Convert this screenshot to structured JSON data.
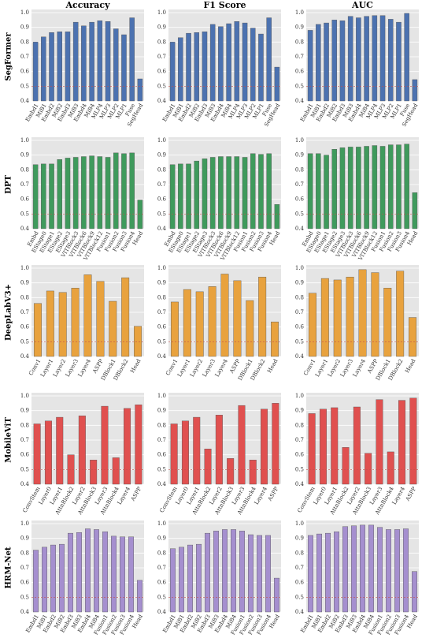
{
  "chart_data": [
    {
      "type": "bar",
      "title": "Accuracy",
      "ylabel": "SegFormer",
      "categories": [
        "Embd1",
        "MiB1",
        "Embd2",
        "MiB2",
        "Embd3",
        "MiB3",
        "Embd4",
        "MiB4",
        "MLP4",
        "MLP3",
        "MLP2",
        "MLP1",
        "Fuse",
        "SegHead"
      ],
      "values": [
        0.8,
        0.835,
        0.865,
        0.87,
        0.87,
        0.935,
        0.91,
        0.935,
        0.945,
        0.94,
        0.89,
        0.85,
        0.965,
        0.55
      ],
      "color": "#4c72b0",
      "ylim": [
        0.4,
        1
      ],
      "yticks": [
        0.4,
        0.5,
        0.6,
        0.7,
        0.8,
        0.9,
        {
          "value": 1,
          "label": "1.0"
        }
      ],
      "reference_line": 0.5,
      "grid": true
    },
    {
      "type": "bar",
      "title": "F1 Score",
      "categories": [
        "Embd1",
        "MiB1",
        "Embd2",
        "MiB2",
        "Embd3",
        "MiB3",
        "Embd4",
        "MiB4",
        "MLP4",
        "MLP3",
        "MLP2",
        "MLP1",
        "Fuse",
        "SegHead"
      ],
      "values": [
        0.8,
        0.83,
        0.86,
        0.865,
        0.87,
        0.92,
        0.905,
        0.925,
        0.94,
        0.93,
        0.895,
        0.855,
        0.965,
        0.63
      ],
      "color": "#4c72b0",
      "ylim": [
        0.4,
        1
      ],
      "yticks": [
        0.4,
        0.5,
        0.6,
        0.7,
        0.8,
        0.9,
        {
          "value": 1,
          "label": "1.0"
        }
      ],
      "reference_line": 0.5,
      "grid": true
    },
    {
      "type": "bar",
      "title": "AUC",
      "categories": [
        "Embd1",
        "MiB1",
        "Embd2",
        "MiB2",
        "Embd3",
        "MiB3",
        "Embd4",
        "MiB4",
        "MLP4",
        "MLP3",
        "MLP2",
        "MLP1",
        "Fuse",
        "SegHead"
      ],
      "values": [
        0.88,
        0.92,
        0.93,
        0.95,
        0.945,
        0.975,
        0.965,
        0.975,
        0.98,
        0.98,
        0.955,
        0.935,
        0.995,
        0.545
      ],
      "color": "#4c72b0",
      "ylim": [
        0.4,
        1
      ],
      "yticks": [
        0.4,
        0.5,
        0.6,
        0.7,
        0.8,
        0.9,
        {
          "value": 1,
          "label": "1.0"
        }
      ],
      "reference_line": 0.5,
      "grid": true
    },
    {
      "type": "bar",
      "ylabel": "DPT",
      "categories": [
        "Embd",
        "EStage0",
        "EStage1",
        "EStage2",
        "EStage3",
        "VITBlock3",
        "VITBlock6",
        "VITBlock9",
        "VITBlock12",
        "Fusion1",
        "Fusion2",
        "Fusion3",
        "Fusion4",
        "Head"
      ],
      "values": [
        0.835,
        0.84,
        0.84,
        0.87,
        0.88,
        0.885,
        0.89,
        0.895,
        0.89,
        0.885,
        0.915,
        0.91,
        0.915,
        0.595
      ],
      "color": "#3f9a5c",
      "ylim": [
        0.4,
        1
      ],
      "yticks": [
        0.4,
        0.5,
        0.6,
        0.7,
        0.8,
        0.9,
        {
          "value": 1,
          "label": "1.0"
        }
      ],
      "reference_line": 0.5,
      "grid": true
    },
    {
      "type": "bar",
      "categories": [
        "Embd",
        "EStage0",
        "EStage1",
        "EStage2",
        "EStage3",
        "VITBlock3",
        "VITBlock6",
        "VITBlock9",
        "VITBlock12",
        "Fusion1",
        "Fusion2",
        "Fusion3",
        "Fusion4",
        "Head"
      ],
      "values": [
        0.835,
        0.84,
        0.84,
        0.86,
        0.875,
        0.885,
        0.89,
        0.89,
        0.89,
        0.885,
        0.91,
        0.905,
        0.91,
        0.565
      ],
      "color": "#3f9a5c",
      "ylim": [
        0.4,
        1
      ],
      "yticks": [
        0.4,
        0.5,
        0.6,
        0.7,
        0.8,
        0.9,
        {
          "value": 1,
          "label": "1.0"
        }
      ],
      "reference_line": 0.5,
      "grid": true
    },
    {
      "type": "bar",
      "categories": [
        "Embd",
        "EStage0",
        "EStage1",
        "EStage2",
        "EStage3",
        "VITBlock3",
        "VITBlock6",
        "VITBlock9",
        "VITBlock12",
        "Fusion1",
        "Fusion2",
        "Fusion3",
        "Fusion4",
        "Head"
      ],
      "values": [
        0.91,
        0.91,
        0.9,
        0.94,
        0.95,
        0.955,
        0.955,
        0.96,
        0.965,
        0.96,
        0.97,
        0.97,
        0.975,
        0.645
      ],
      "color": "#3f9a5c",
      "ylim": [
        0.4,
        1
      ],
      "yticks": [
        0.4,
        0.5,
        0.6,
        0.7,
        0.8,
        0.9,
        {
          "value": 1,
          "label": "1.0"
        }
      ],
      "reference_line": 0.5,
      "grid": true
    },
    {
      "type": "bar",
      "ylabel": "DeepLabV3+",
      "categories": [
        "Conv1",
        "Layer1",
        "Layer2",
        "Layer3",
        "Layer4",
        "ASPP",
        "DBlock1",
        "DBlock2",
        "Head"
      ],
      "values": [
        0.76,
        0.845,
        0.835,
        0.865,
        0.955,
        0.91,
        0.775,
        0.935,
        0.605
      ],
      "color": "#e8a23e",
      "ylim": [
        0.4,
        1
      ],
      "yticks": [
        0.4,
        0.5,
        0.6,
        0.7,
        0.8,
        0.9,
        {
          "value": 1,
          "label": "1.0"
        }
      ],
      "reference_line": 0.5,
      "grid": true
    },
    {
      "type": "bar",
      "categories": [
        "Conv1",
        "Layer1",
        "Layer2",
        "Layer3",
        "Layer4",
        "ASPP",
        "DBlock1",
        "DBlock2",
        "Head"
      ],
      "values": [
        0.77,
        0.855,
        0.84,
        0.875,
        0.96,
        0.915,
        0.78,
        0.94,
        0.635
      ],
      "color": "#e8a23e",
      "ylim": [
        0.4,
        1
      ],
      "yticks": [
        0.4,
        0.5,
        0.6,
        0.7,
        0.8,
        0.9,
        {
          "value": 1,
          "label": "1.0"
        }
      ],
      "reference_line": 0.5,
      "grid": true
    },
    {
      "type": "bar",
      "categories": [
        "Conv1",
        "Layer1",
        "Layer2",
        "Layer3",
        "Layer4",
        "ASPP",
        "DBlock1",
        "DBlock2",
        "Head"
      ],
      "values": [
        0.83,
        0.93,
        0.92,
        0.94,
        0.99,
        0.97,
        0.865,
        0.98,
        0.665
      ],
      "color": "#e8a23e",
      "ylim": [
        0.4,
        1
      ],
      "yticks": [
        0.4,
        0.5,
        0.6,
        0.7,
        0.8,
        0.9,
        {
          "value": 1,
          "label": "1.0"
        }
      ],
      "reference_line": 0.5,
      "grid": true
    },
    {
      "type": "bar",
      "ylabel": "MobileViT",
      "categories": [
        "ConvStem",
        "Layer0",
        "Layer1",
        "AttnBlock2",
        "Layer2",
        "AttnBlock3",
        "Layer3",
        "AttnBlock4",
        "Layer4",
        "ASPP"
      ],
      "values": [
        0.81,
        0.83,
        0.855,
        0.6,
        0.865,
        0.565,
        0.93,
        0.58,
        0.915,
        0.94
      ],
      "color": "#e0504f",
      "ylim": [
        0.4,
        1
      ],
      "yticks": [
        0.4,
        0.5,
        0.6,
        0.7,
        0.8,
        0.9,
        {
          "value": 1,
          "label": "1.0"
        }
      ],
      "reference_line": 0.5,
      "grid": true
    },
    {
      "type": "bar",
      "categories": [
        "ConvStem",
        "Layer0",
        "Layer1",
        "AttnBlock2",
        "Layer2",
        "AttnBlock3",
        "Layer3",
        "AttnBlock4",
        "Layer4",
        "ASPP"
      ],
      "values": [
        0.81,
        0.83,
        0.855,
        0.64,
        0.87,
        0.575,
        0.935,
        0.565,
        0.91,
        0.95
      ],
      "color": "#e0504f",
      "ylim": [
        0.4,
        1
      ],
      "yticks": [
        0.4,
        0.5,
        0.6,
        0.7,
        0.8,
        0.9,
        {
          "value": 1,
          "label": "1.0"
        }
      ],
      "reference_line": 0.5,
      "grid": true
    },
    {
      "type": "bar",
      "categories": [
        "ConvStem",
        "Layer0",
        "Layer1",
        "AttnBlock2",
        "Layer2",
        "AttnBlock3",
        "Layer3",
        "AttnBlock4",
        "Layer4",
        "ASPP"
      ],
      "values": [
        0.88,
        0.91,
        0.92,
        0.65,
        0.925,
        0.61,
        0.975,
        0.62,
        0.97,
        0.985
      ],
      "color": "#e0504f",
      "ylim": [
        0.4,
        1
      ],
      "yticks": [
        0.4,
        0.5,
        0.6,
        0.7,
        0.8,
        0.9,
        {
          "value": 1,
          "label": "1.0"
        }
      ],
      "reference_line": 0.5,
      "grid": true
    },
    {
      "type": "bar",
      "ylabel": "HRM-Net",
      "categories": [
        "Embd1",
        "MiB1",
        "Embd2",
        "MiB2",
        "Embd3",
        "MiB3",
        "Embd4",
        "MiB4",
        "Fusion1",
        "Fusion2",
        "Fusion3",
        "Fusion4",
        "Head"
      ],
      "values": [
        0.82,
        0.84,
        0.855,
        0.86,
        0.935,
        0.94,
        0.965,
        0.96,
        0.945,
        0.915,
        0.91,
        0.91,
        0.615
      ],
      "color": "#a58fcf",
      "ylim": [
        0.4,
        1
      ],
      "yticks": [
        0.4,
        0.5,
        0.6,
        0.7,
        0.8,
        0.9,
        {
          "value": 1,
          "label": "1.0"
        }
      ],
      "reference_line": 0.5,
      "grid": true
    },
    {
      "type": "bar",
      "categories": [
        "Embd1",
        "MiB1",
        "Embd2",
        "MiB2",
        "Embd3",
        "MiB3",
        "Embd4",
        "MiB4",
        "Fusion1",
        "Fusion2",
        "Fusion3",
        "Fusion4",
        "Head"
      ],
      "values": [
        0.83,
        0.84,
        0.855,
        0.86,
        0.935,
        0.95,
        0.96,
        0.96,
        0.95,
        0.925,
        0.92,
        0.92,
        0.63
      ],
      "color": "#a58fcf",
      "ylim": [
        0.4,
        1
      ],
      "yticks": [
        0.4,
        0.5,
        0.6,
        0.7,
        0.8,
        0.9,
        {
          "value": 1,
          "label": "1.0"
        }
      ],
      "reference_line": 0.5,
      "grid": true
    },
    {
      "type": "bar",
      "categories": [
        "Embd1",
        "MiB1",
        "Embd2",
        "MiB2",
        "Embd3",
        "MiB3",
        "Embd4",
        "MiB4",
        "Fusion1",
        "Fusion2",
        "Fusion3",
        "Fusion4",
        "Head"
      ],
      "values": [
        0.92,
        0.93,
        0.935,
        0.945,
        0.98,
        0.985,
        0.99,
        0.99,
        0.975,
        0.96,
        0.96,
        0.965,
        0.675
      ],
      "color": "#a58fcf",
      "ylim": [
        0.4,
        1
      ],
      "yticks": [
        0.4,
        0.5,
        0.6,
        0.7,
        0.8,
        0.9,
        {
          "value": 1,
          "label": "1.0"
        }
      ],
      "reference_line": 0.5,
      "grid": true
    }
  ]
}
